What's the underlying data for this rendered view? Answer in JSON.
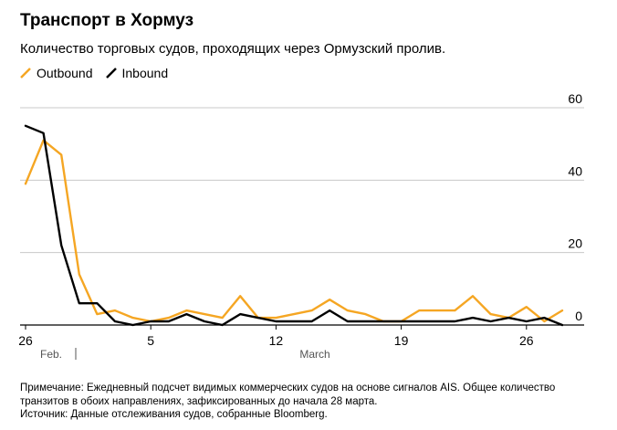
{
  "title": "Транспорт в Хормуз",
  "subtitle": "Количество торговых судов, проходящих через Ормузский пролив.",
  "notes": {
    "line1": "Примечание: Ежедневный подсчет видимых коммерческих судов на основе сигналов AIS. Общее количество",
    "line2": "транзитов в обоих направлениях, зафиксированных до начала 28 марта.",
    "source": "Источник: Данные отслеживания судов, собранные Bloomberg."
  },
  "chart_data": {
    "type": "line",
    "x": [
      "Feb 26",
      "Feb 27",
      "Feb 28",
      "Mar 1",
      "Mar 2",
      "Mar 3",
      "Mar 4",
      "Mar 5",
      "Mar 6",
      "Mar 7",
      "Mar 8",
      "Mar 9",
      "Mar 10",
      "Mar 11",
      "Mar 12",
      "Mar 13",
      "Mar 14",
      "Mar 15",
      "Mar 16",
      "Mar 17",
      "Mar 18",
      "Mar 19",
      "Mar 20",
      "Mar 21",
      "Mar 22",
      "Mar 23",
      "Mar 24",
      "Mar 25",
      "Mar 26",
      "Mar 27",
      "Mar 28"
    ],
    "series": [
      {
        "name": "Outbound",
        "color": "#f5a623",
        "values": [
          39,
          51,
          47,
          14,
          3,
          4,
          2,
          1,
          2,
          4,
          3,
          2,
          8,
          2,
          2,
          3,
          4,
          7,
          4,
          3,
          1,
          1,
          4,
          4,
          4,
          8,
          3,
          2,
          5,
          1,
          4
        ]
      },
      {
        "name": "Inbound",
        "color": "#000000",
        "values": [
          55,
          53,
          22,
          6,
          6,
          1,
          0,
          1,
          1,
          3,
          1,
          0,
          3,
          2,
          1,
          1,
          1,
          4,
          1,
          1,
          1,
          1,
          1,
          1,
          1,
          2,
          1,
          2,
          1,
          2,
          0
        ]
      }
    ],
    "x_ticks": [
      {
        "index": 0,
        "label": "26"
      },
      {
        "index": 7,
        "label": "5"
      },
      {
        "index": 14,
        "label": "12"
      },
      {
        "index": 21,
        "label": "19"
      },
      {
        "index": 28,
        "label": "26"
      }
    ],
    "month_labels": [
      {
        "index": 0,
        "label": "Feb."
      },
      {
        "index": 14,
        "label": "March"
      }
    ],
    "month_separator_index": 2.5,
    "y_ticks": [
      0,
      20,
      40,
      60
    ],
    "ylim": [
      0,
      60
    ],
    "grid": true,
    "y_axis_position": "right",
    "legend_position": "top-left"
  }
}
